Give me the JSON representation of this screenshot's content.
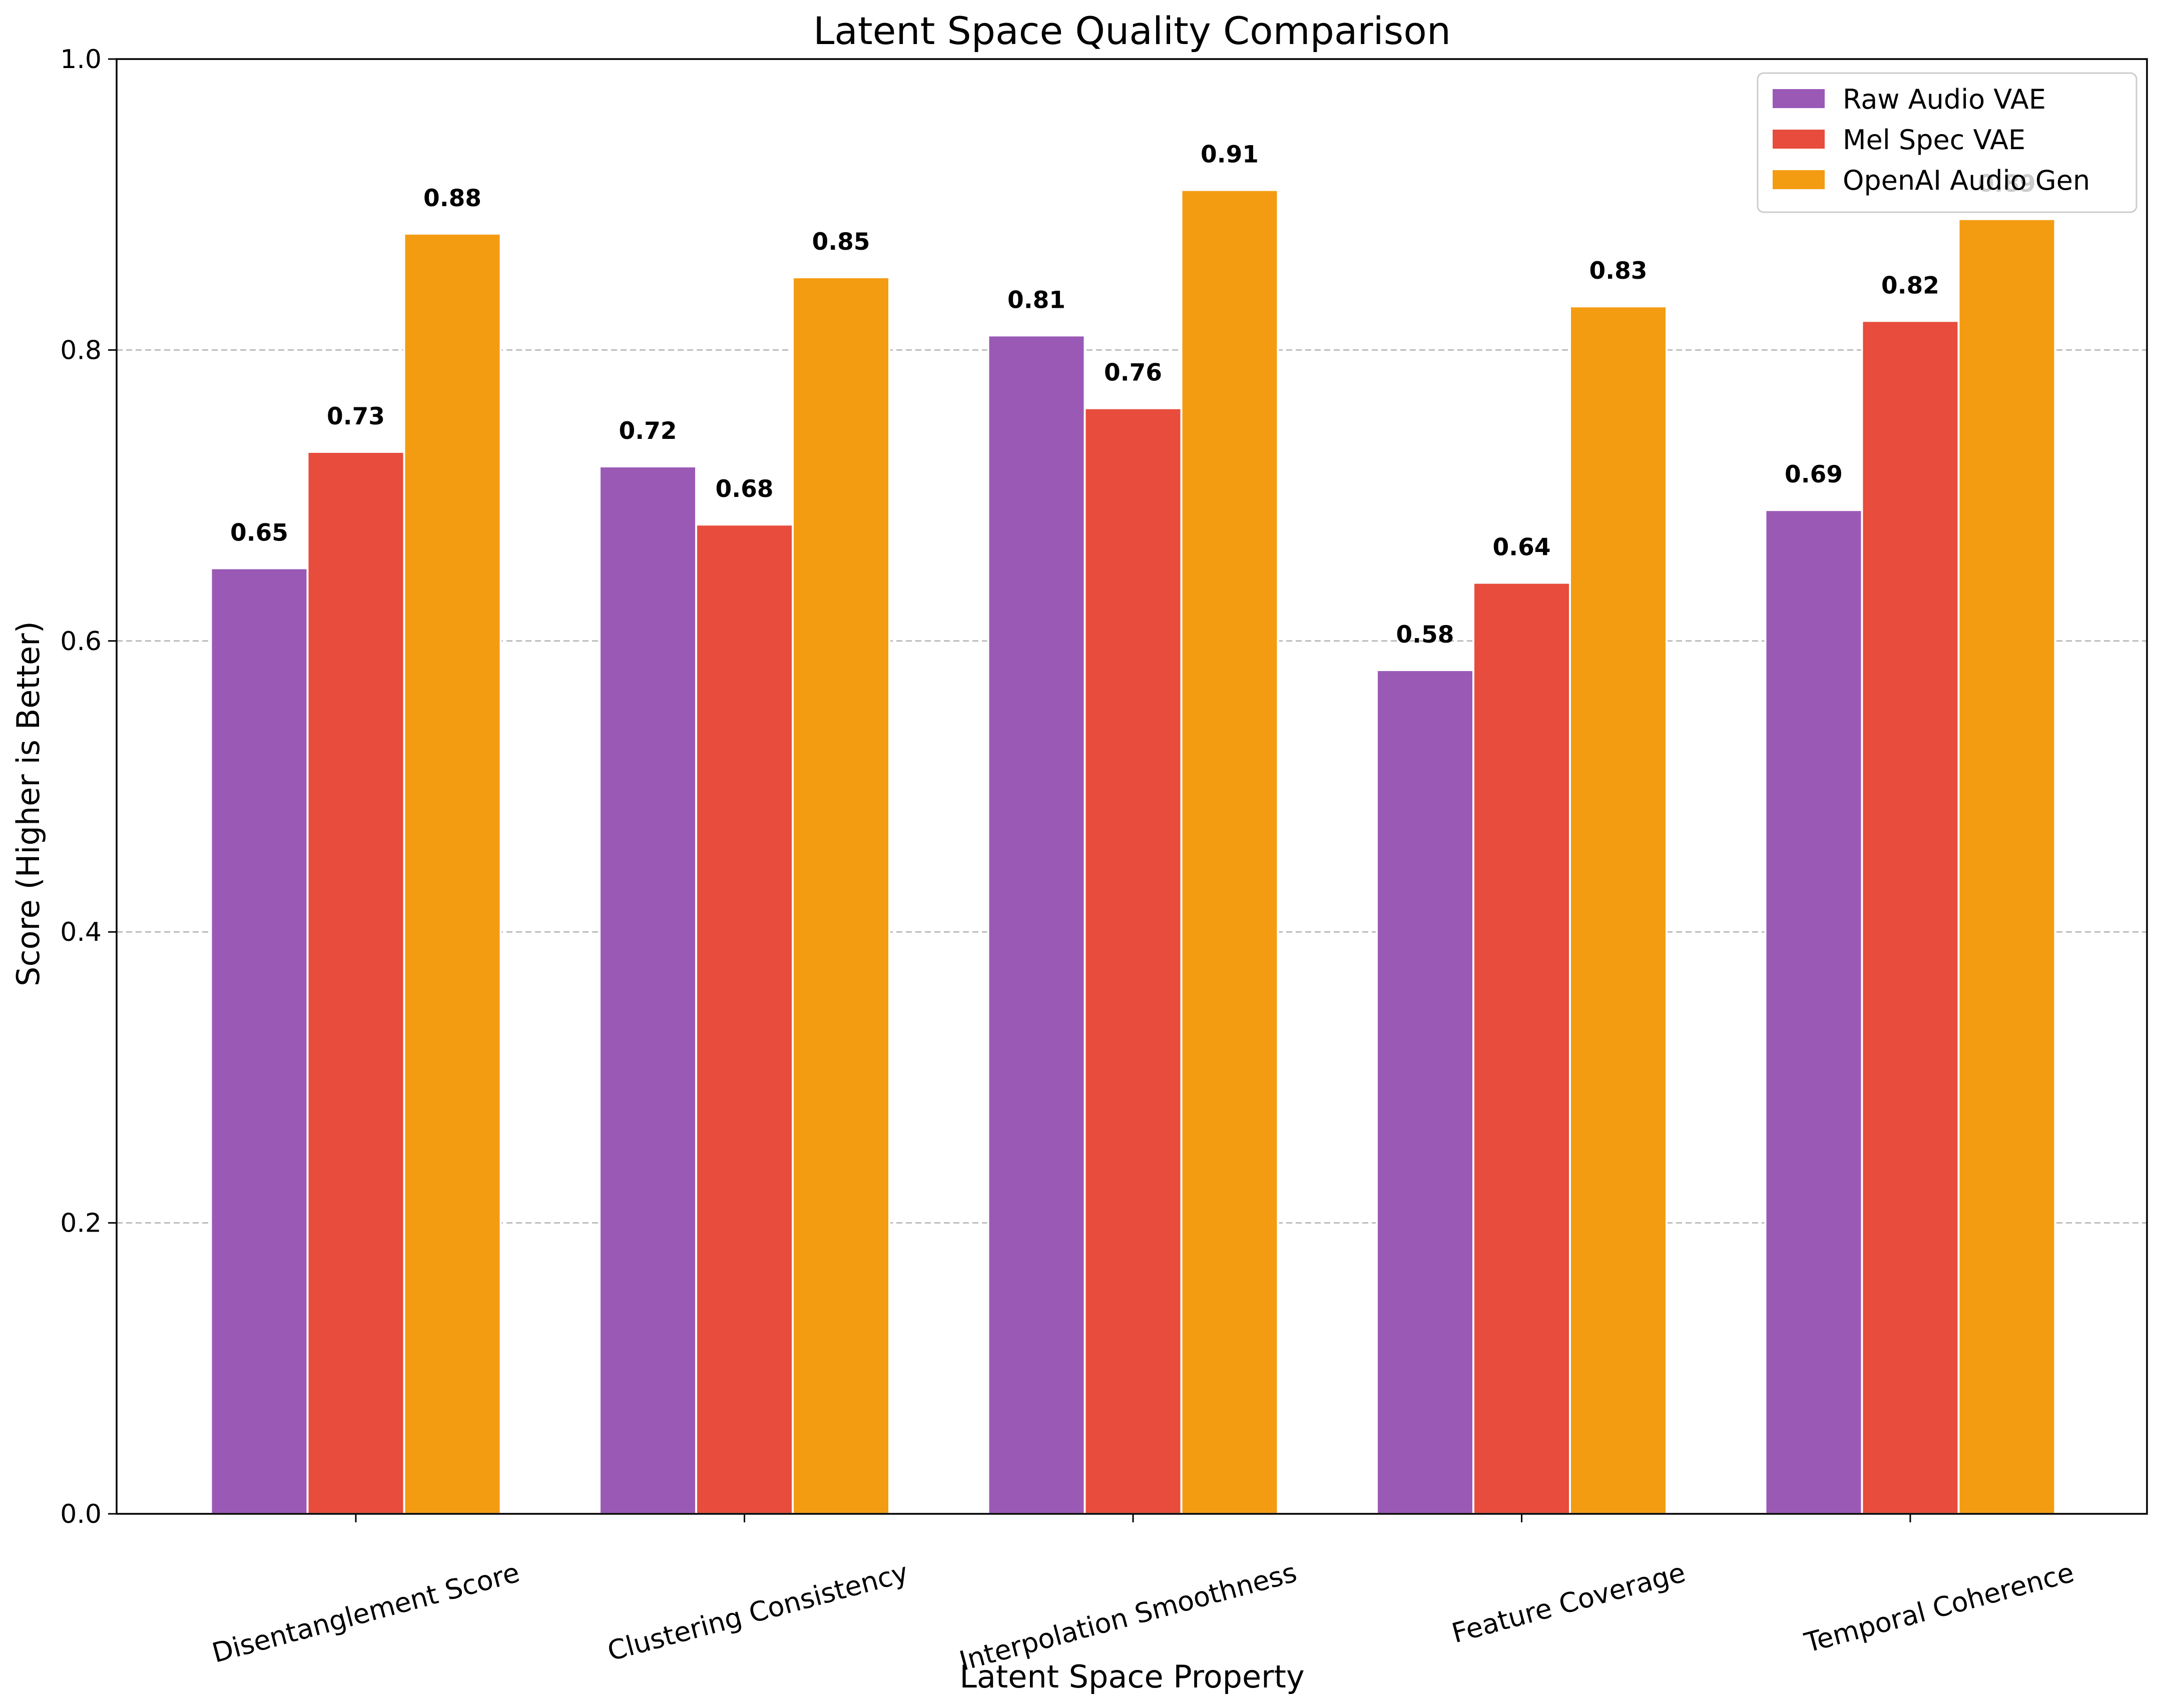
{
  "chart_data": {
    "type": "bar",
    "title": "Latent Space Quality Comparison",
    "xlabel": "Latent Space Property",
    "ylabel": "Score (Higher is Better)",
    "ylim": [
      0,
      1.0
    ],
    "yticks": [
      "0.0",
      "0.2",
      "0.4",
      "0.6",
      "0.8",
      "1.0"
    ],
    "ytick_values": [
      0.0,
      0.2,
      0.4,
      0.6,
      0.8,
      1.0
    ],
    "grid": "horizontal dashed",
    "legend_position": "top-right",
    "categories": [
      "Disentanglement Score",
      "Clustering Consistency",
      "Interpolation Smoothness",
      "Feature Coverage",
      "Temporal Coherence"
    ],
    "series": [
      {
        "name": "Raw Audio VAE",
        "color": "#9b59b6",
        "values": [
          0.65,
          0.72,
          0.81,
          0.58,
          0.69
        ],
        "labels": [
          "0.65",
          "0.72",
          "0.81",
          "0.58",
          "0.69"
        ]
      },
      {
        "name": "Mel Spec VAE",
        "color": "#e74c3c",
        "values": [
          0.73,
          0.68,
          0.76,
          0.64,
          0.82
        ],
        "labels": [
          "0.73",
          "0.68",
          "0.76",
          "0.64",
          "0.82"
        ]
      },
      {
        "name": "OpenAI Audio Gen",
        "color": "#f39c12",
        "values": [
          0.88,
          0.85,
          0.91,
          0.83,
          0.89
        ],
        "labels": [
          "0.88",
          "0.85",
          "0.91",
          "0.83",
          "0.89"
        ]
      }
    ]
  }
}
